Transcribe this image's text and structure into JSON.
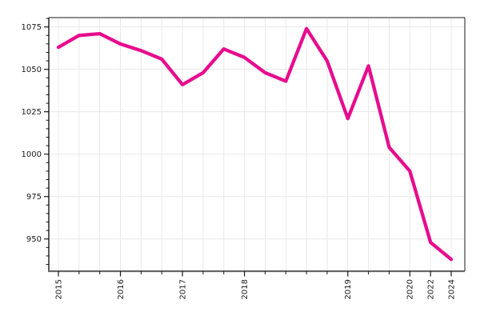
{
  "figure": {
    "background": "#ffffff",
    "title": ""
  },
  "chart_data": {
    "type": "line",
    "title": "",
    "xlabel": "",
    "ylabel": "",
    "legend": false,
    "grid": true,
    "line_color": "#e70c8e",
    "grid_color": "#e8e8e8",
    "frame_color": "#1a1a1a",
    "left_spine_color": "#333333",
    "bottom_spine_color": "#666666",
    "tick_color": "#1a1a1a",
    "label_color": "#1a1a1a",
    "x_tick_labels": [
      "2015",
      "2016",
      "2017",
      "2018",
      "2019",
      "2020",
      "2022",
      "2024"
    ],
    "y_ticks": [
      950,
      975,
      1000,
      1025,
      1050,
      1075
    ],
    "y_minor_tick_step": 5,
    "y_minor_tick_min": 935,
    "y_minor_tick_max": 1080,
    "ylim": [
      931,
      1080.5
    ],
    "observations": [
      {
        "label": "2015",
        "value": 1063
      },
      {
        "label": "",
        "value": 1070
      },
      {
        "label": "",
        "value": 1071
      },
      {
        "label": "2016",
        "value": 1065
      },
      {
        "label": "",
        "value": 1061
      },
      {
        "label": "",
        "value": 1056
      },
      {
        "label": "2017",
        "value": 1041
      },
      {
        "label": "",
        "value": 1048
      },
      {
        "label": "",
        "value": 1062
      },
      {
        "label": "2018",
        "value": 1057
      },
      {
        "label": "",
        "value": 1048
      },
      {
        "label": "",
        "value": 1043
      },
      {
        "label": "",
        "value": 1074
      },
      {
        "label": "",
        "value": 1055
      },
      {
        "label": "2019",
        "value": 1021
      },
      {
        "label": "",
        "value": 1052
      },
      {
        "label": "",
        "value": 1004
      },
      {
        "label": "2020",
        "value": 990
      },
      {
        "label": "2022",
        "value": 948
      },
      {
        "label": "2024",
        "value": 938
      }
    ]
  }
}
